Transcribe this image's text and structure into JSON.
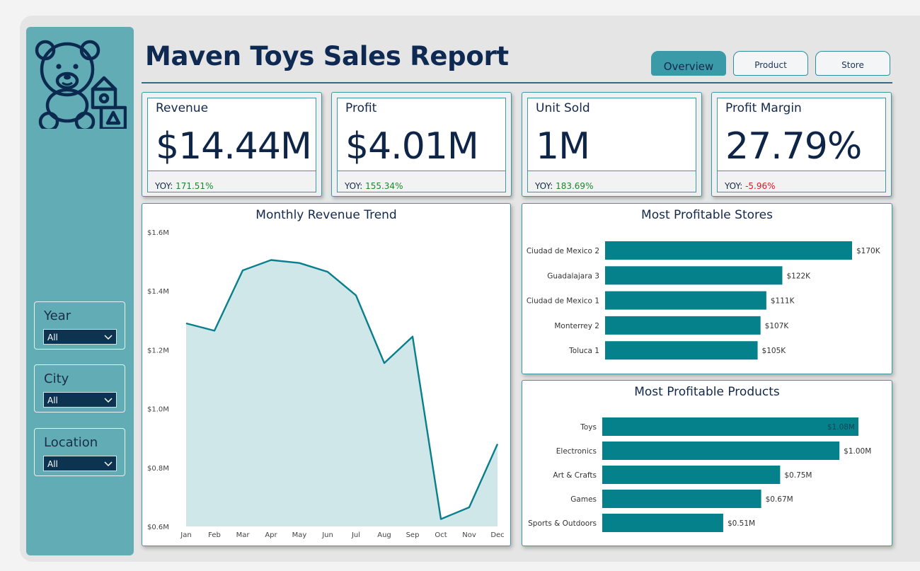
{
  "app": {
    "title": "Maven Toys Sales Report",
    "accent": "#05818b",
    "navy": "#0e2a52",
    "logo_icon": "teddy-bear-blocks-icon"
  },
  "tabs": [
    {
      "label": "Overview",
      "active": true
    },
    {
      "label": "Product",
      "active": false
    },
    {
      "label": "Store",
      "active": false
    }
  ],
  "slicers": [
    {
      "label": "Year",
      "value": "All"
    },
    {
      "label": "City",
      "value": "All"
    },
    {
      "label": "Location",
      "value": "All"
    }
  ],
  "kpis": [
    {
      "title": "Revenue",
      "value": "$14.44M",
      "yoy_label": "YOY:",
      "yoy": "171.51%",
      "yoy_status": "pos"
    },
    {
      "title": "Profit",
      "value": "$4.01M",
      "yoy_label": "YOY:",
      "yoy": "155.34%",
      "yoy_status": "pos"
    },
    {
      "title": "Unit Sold",
      "value": "1M",
      "yoy_label": "YOY:",
      "yoy": "183.69%",
      "yoy_status": "pos"
    },
    {
      "title": "Profit Margin",
      "value": "27.79%",
      "yoy_label": "YOY:",
      "yoy": "-5.96%",
      "yoy_status": "neg"
    }
  ],
  "chart_data": [
    {
      "type": "area",
      "title": "Monthly Revenue Trend",
      "categories": [
        "Jan",
        "Feb",
        "Mar",
        "Apr",
        "May",
        "Jun",
        "Jul",
        "Aug",
        "Sep",
        "Oct",
        "Nov",
        "Dec"
      ],
      "values": [
        1.29,
        1.265,
        1.47,
        1.505,
        1.495,
        1.465,
        1.385,
        1.155,
        1.245,
        0.625,
        0.665,
        0.88
      ],
      "unit": "M",
      "ylim": [
        0.6,
        1.6
      ],
      "yticks": [
        "$0.6M",
        "$0.8M",
        "$1.0M",
        "$1.2M",
        "$1.4M",
        "$1.6M"
      ],
      "yticks_values": [
        0.6,
        0.8,
        1.0,
        1.2,
        1.4,
        1.6
      ],
      "line_color": "#0a7f8c",
      "fill_color": "#d0e7ea",
      "grid": false
    },
    {
      "type": "bar",
      "orientation": "horizontal",
      "title": "Most Profitable Stores",
      "categories": [
        "Ciudad de Mexico 2",
        "Guadalajara 3",
        "Ciudad de Mexico 1",
        "Monterrey 2",
        "Toluca 1"
      ],
      "values": [
        170,
        122,
        111,
        107,
        105
      ],
      "labels": [
        "$170K",
        "$122K",
        "$111K",
        "$107K",
        "$105K"
      ],
      "xlim": [
        0,
        170
      ],
      "bar_color": "#05818b"
    },
    {
      "type": "bar",
      "orientation": "horizontal",
      "title": "Most Profitable Products",
      "categories": [
        "Toys",
        "Electronics",
        "Art & Crafts",
        "Games",
        "Sports & Outdoors"
      ],
      "values": [
        1.08,
        1.0,
        0.75,
        0.67,
        0.51
      ],
      "labels": [
        "$1.08M",
        "$1.00M",
        "$0.75M",
        "$0.67M",
        "$0.51M"
      ],
      "xlim": [
        0,
        1.08
      ],
      "bar_color": "#05818b"
    }
  ]
}
